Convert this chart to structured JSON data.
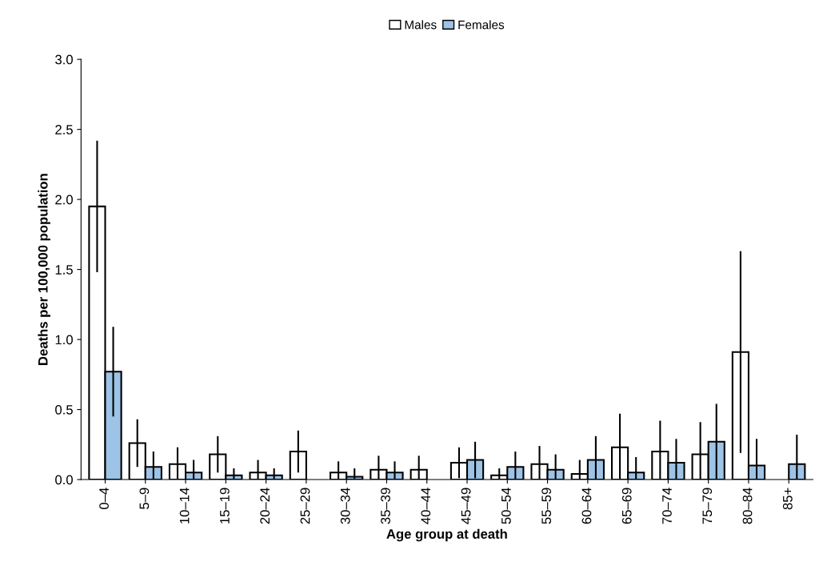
{
  "chart_data": {
    "type": "bar",
    "xlabel": "Age group at death",
    "ylabel": "Deaths per 100,000 population",
    "categories": [
      "0–4",
      "5–9",
      "10–14",
      "15–19",
      "20–24",
      "25–29",
      "30–34",
      "35–39",
      "40–44",
      "45–49",
      "50–54",
      "55–59",
      "60–64",
      "65–69",
      "70–74",
      "75–79",
      "80–84",
      "85+"
    ],
    "series": [
      {
        "name": "Males",
        "color": "#ffffff",
        "values": [
          1.95,
          0.26,
          0.11,
          0.18,
          0.05,
          0.2,
          0.05,
          0.07,
          0.07,
          0.12,
          0.03,
          0.11,
          0.04,
          0.23,
          0.2,
          0.18,
          0.91,
          0
        ],
        "errors": [
          0.47,
          0.17,
          0.12,
          0.13,
          0.09,
          0.15,
          0.08,
          0.1,
          0.1,
          0.11,
          0.05,
          0.13,
          0.1,
          0.24,
          0.22,
          0.23,
          0.72,
          null
        ]
      },
      {
        "name": "Females",
        "color": "#9dc3e6",
        "values": [
          0.77,
          0.09,
          0.05,
          0.03,
          0.03,
          0,
          0.02,
          0.05,
          0,
          0.14,
          0.09,
          0.07,
          0.14,
          0.05,
          0.12,
          0.27,
          0.1,
          0.11
        ],
        "errors": [
          0.32,
          0.11,
          0.09,
          0.05,
          0.05,
          null,
          0.06,
          0.08,
          null,
          0.13,
          0.11,
          0.11,
          0.17,
          0.11,
          0.17,
          0.27,
          0.19,
          0.21
        ]
      }
    ],
    "ylim": [
      0,
      3.0
    ],
    "yticks": [
      {
        "value": 0,
        "label": "0.0"
      },
      {
        "value": 0.5,
        "label": "0.5"
      },
      {
        "value": 1,
        "label": "1.0"
      },
      {
        "value": 1.5,
        "label": "1.5"
      },
      {
        "value": 2,
        "label": "2.0"
      },
      {
        "value": 2.5,
        "label": "2.5"
      },
      {
        "value": 3,
        "label": "3.0"
      }
    ],
    "legend": "top",
    "grid": false
  }
}
